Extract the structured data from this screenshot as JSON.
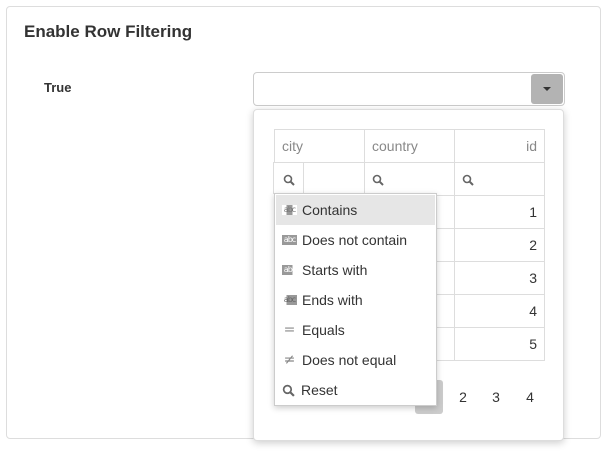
{
  "title": "Enable Row Filtering",
  "option_label": "True",
  "combo": {
    "value": "",
    "icon": "caret-down-icon"
  },
  "grid": {
    "columns": [
      "city",
      "country",
      "id"
    ],
    "rows": [
      {
        "id": "1"
      },
      {
        "id": "2"
      },
      {
        "id": "3"
      },
      {
        "id": "4"
      },
      {
        "id": "5"
      }
    ]
  },
  "pager": {
    "pages": [
      "1",
      "2",
      "3",
      "4"
    ],
    "active": "1"
  },
  "filter_menu": {
    "items": [
      {
        "label": "Contains",
        "icon": "contains-icon",
        "selected": true
      },
      {
        "label": "Does not contain",
        "icon": "does-not-contain-icon"
      },
      {
        "label": "Starts with",
        "icon": "starts-with-icon"
      },
      {
        "label": "Ends with",
        "icon": "ends-with-icon"
      },
      {
        "label": "Equals",
        "icon": "equals-icon"
      },
      {
        "label": "Does not equal",
        "icon": "not-equal-icon"
      },
      {
        "label": "Reset",
        "icon": "search-icon"
      }
    ]
  }
}
